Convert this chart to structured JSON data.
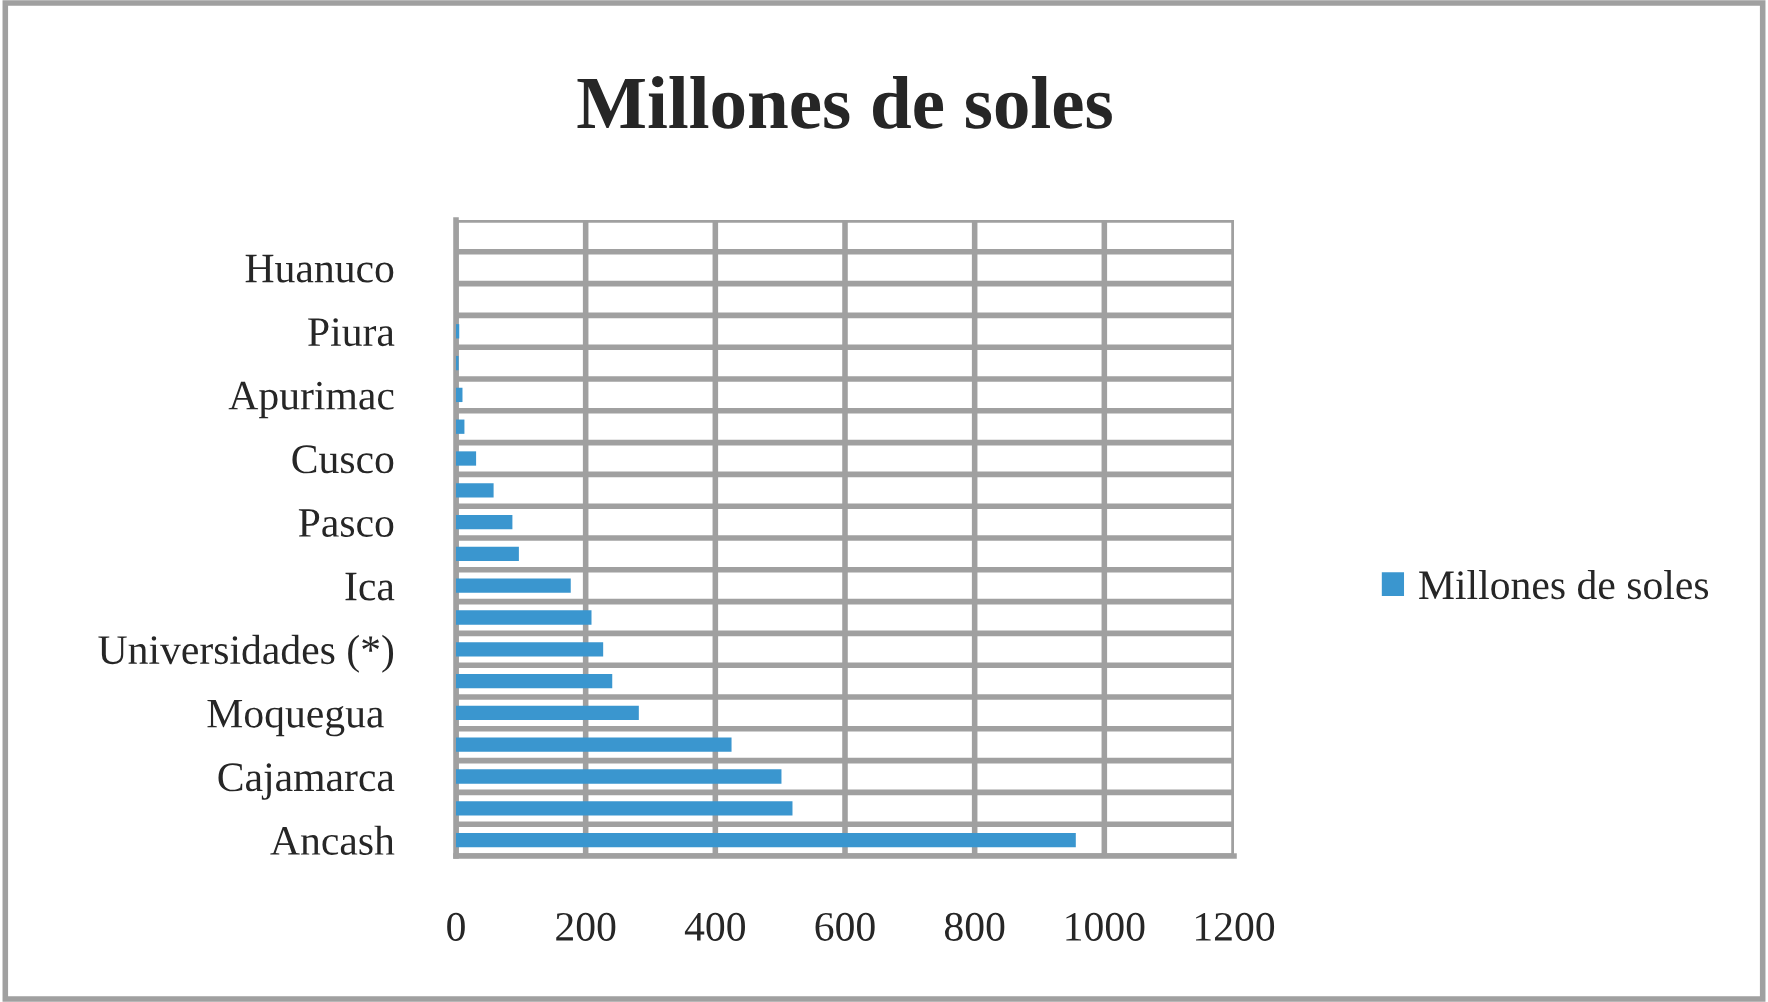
{
  "chart_data": {
    "type": "bar",
    "orientation": "horizontal",
    "title": "Millones de soles",
    "categories": [
      null,
      "Huanuco",
      null,
      "Piura",
      null,
      "Apurimac",
      null,
      "Cusco",
      null,
      "Pasco",
      null,
      "Ica",
      null,
      "Universidades (*)",
      null,
      "Moquegua ",
      null,
      "Cajamarca",
      null,
      "Ancash"
    ],
    "series": [
      {
        "name": "Millones de soles",
        "color": "#3a96cf",
        "values": [
          0,
          0,
          0,
          5,
          4,
          10,
          13,
          31,
          58,
          87,
          97,
          177,
          209,
          227,
          241,
          282,
          425,
          502,
          519,
          956
        ]
      }
    ],
    "xlim": [
      0,
      1200
    ],
    "xticks": [
      0,
      200,
      400,
      600,
      800,
      1000,
      1200
    ],
    "grid": true,
    "legend": "right"
  }
}
